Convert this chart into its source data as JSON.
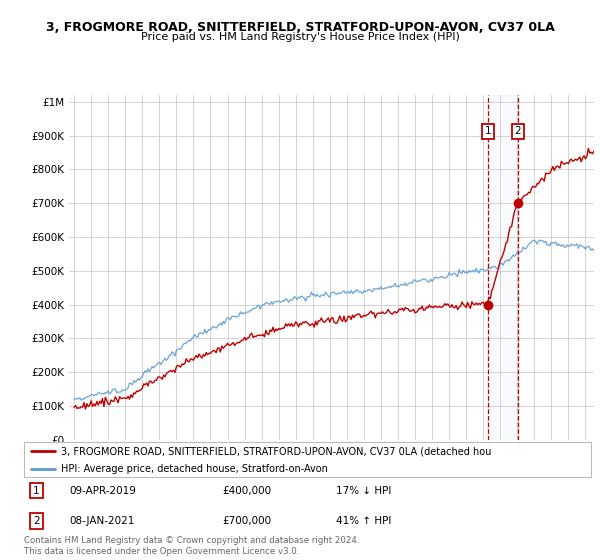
{
  "title_line1": "3, FROGMORE ROAD, SNITTERFIELD, STRATFORD-UPON-AVON, CV37 0LA",
  "title_line2": "Price paid vs. HM Land Registry's House Price Index (HPI)",
  "ytick_values": [
    0,
    100000,
    200000,
    300000,
    400000,
    500000,
    600000,
    700000,
    800000,
    900000,
    1000000
  ],
  "ylim": [
    0,
    1020000
  ],
  "xlim_start": 1994.7,
  "xlim_end": 2025.5,
  "hpi_color": "#5b9bd5",
  "price_color": "#c00000",
  "marker1_date": 2019.27,
  "marker1_price": 400000,
  "marker2_date": 2021.02,
  "marker2_price": 700000,
  "transaction1": {
    "label": "1",
    "date": "09-APR-2019",
    "price": "£400,000",
    "hpi_diff": "17% ↓ HPI"
  },
  "transaction2": {
    "label": "2",
    "date": "08-JAN-2021",
    "price": "£700,000",
    "hpi_diff": "41% ↑ HPI"
  },
  "legend_property": "3, FROGMORE ROAD, SNITTERFIELD, STRATFORD-UPON-AVON, CV37 0LA (detached hou",
  "legend_hpi": "HPI: Average price, detached house, Stratford-on-Avon",
  "footnote": "Contains HM Land Registry data © Crown copyright and database right 2024.\nThis data is licensed under the Open Government Licence v3.0.",
  "background_color": "#ffffff",
  "grid_color": "#cccccc",
  "shaded_region_color": "#dce6f1"
}
